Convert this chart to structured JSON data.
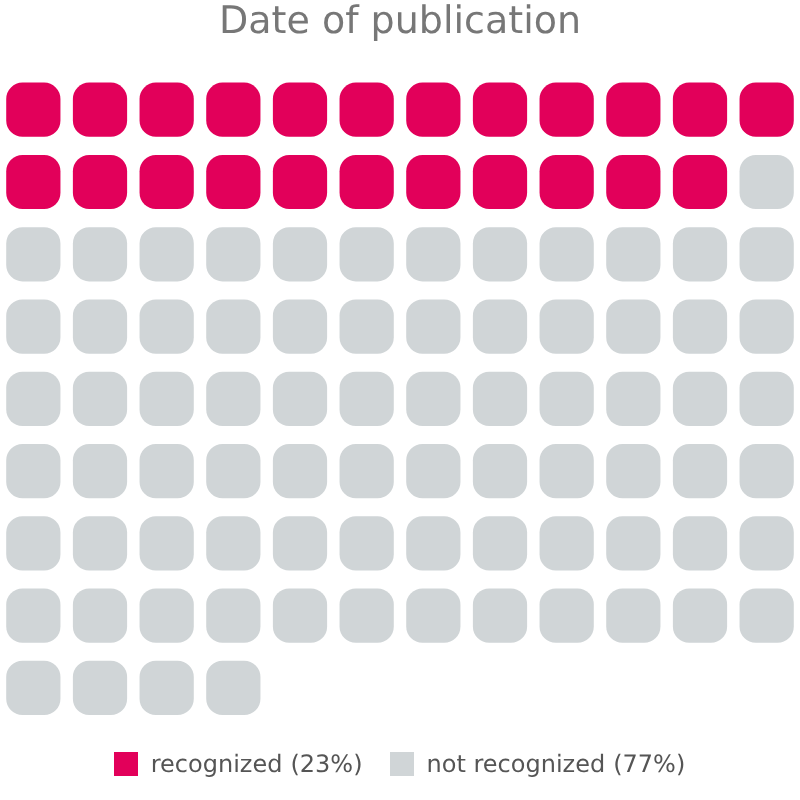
{
  "chart_data": {
    "type": "other",
    "title": "Date of publication",
    "categories": [
      "recognized",
      "not recognized"
    ],
    "values": [
      23,
      77
    ],
    "value_labels": [
      "(23%)",
      "(77%)"
    ],
    "colors": [
      "#e2005a",
      "#d0d5d7"
    ]
  }
}
